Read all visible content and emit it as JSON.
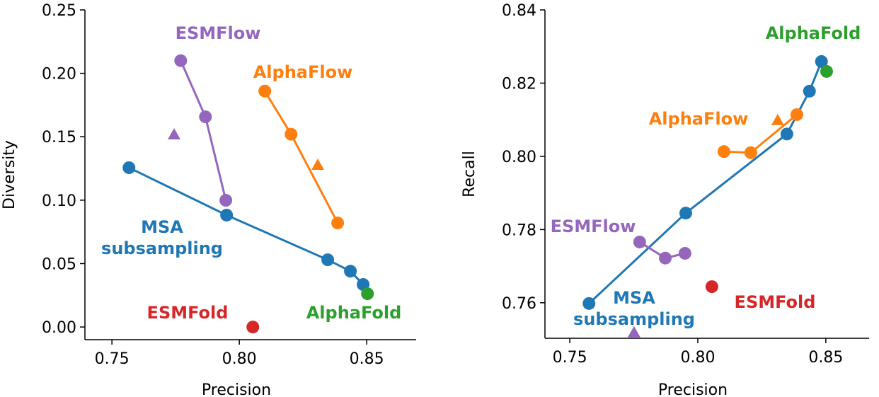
{
  "chart_data": [
    {
      "type": "scatter",
      "x_label": "Precision",
      "y_label": "Diversity",
      "xlim": [
        0.7394,
        0.8694
      ],
      "ylim": [
        -0.01,
        0.25
      ],
      "xticks": [
        0.75,
        {
          "value": 0.8,
          "label": "0.80"
        },
        0.85
      ],
      "yticks": [
        {
          "value": 0,
          "label": "0.00"
        },
        0.05,
        {
          "value": 0.1,
          "label": "0.10"
        },
        0.15,
        {
          "value": 0.2,
          "label": "0.20"
        },
        0.25
      ],
      "series": [
        {
          "name": "MSA subsampling",
          "color": "#1f77b4",
          "x": [
            0.7567,
            0.795,
            0.8347,
            0.8436,
            0.8486
          ],
          "values": [
            0.1256,
            0.0882,
            0.053,
            0.044,
            0.0335
          ]
        },
        {
          "name": "ESMFlow",
          "color": "#9467bd",
          "x": [
            0.777,
            0.7867,
            0.7947
          ],
          "values": [
            0.21,
            0.1657,
            0.0999
          ],
          "triangle": {
            "x": 0.7744,
            "value": 0.1518
          }
        },
        {
          "name": "AlphaFlow",
          "color": "#ff7f0e",
          "x": [
            0.81,
            0.8203,
            0.8386
          ],
          "values": [
            0.186,
            0.152,
            0.082
          ],
          "triangle": {
            "x": 0.8308,
            "value": 0.1278
          }
        },
        {
          "name": "AlphaFold",
          "color": "#2ca02c",
          "x": [
            0.8503
          ],
          "values": [
            0.0262
          ]
        },
        {
          "name": "ESMFold",
          "color": "#d62728",
          "x": [
            0.8053
          ],
          "values": [
            0
          ]
        }
      ]
    },
    {
      "type": "scatter",
      "x_label": "Precision",
      "y_label": "Recall",
      "xlim": [
        0.7403,
        0.8669
      ],
      "ylim": [
        0.7503,
        0.84
      ],
      "xticks": [
        0.75,
        {
          "value": 0.8,
          "label": "0.80"
        },
        0.85
      ],
      "yticks": [
        0.76,
        0.78,
        {
          "value": 0.8,
          "label": "0.80"
        },
        0.82,
        0.84
      ],
      "series": [
        {
          "name": "MSA subsampling",
          "color": "#1f77b4",
          "x": [
            0.7575,
            0.7953,
            0.8348,
            0.8436,
            0.8483
          ],
          "values": [
            0.7598,
            0.7845,
            0.8061,
            0.8178,
            0.8259
          ]
        },
        {
          "name": "ESMFlow",
          "color": "#9467bd",
          "x": [
            0.7773,
            0.7873,
            0.795
          ],
          "values": [
            0.7766,
            0.7722,
            0.7735
          ],
          "triangle": {
            "x": 0.7751,
            "value": 0.7519
          }
        },
        {
          "name": "AlphaFlow",
          "color": "#ff7f0e",
          "x": [
            0.8102,
            0.8207,
            0.8387
          ],
          "values": [
            0.8013,
            0.801,
            0.8114
          ],
          "triangle": {
            "x": 0.8312,
            "value": 0.8099
          }
        },
        {
          "name": "AlphaFold",
          "color": "#2ca02c",
          "x": [
            0.8503
          ],
          "values": [
            0.8232
          ]
        },
        {
          "name": "ESMFold",
          "color": "#d62728",
          "x": [
            0.8055
          ],
          "values": [
            0.7644
          ]
        }
      ]
    }
  ]
}
